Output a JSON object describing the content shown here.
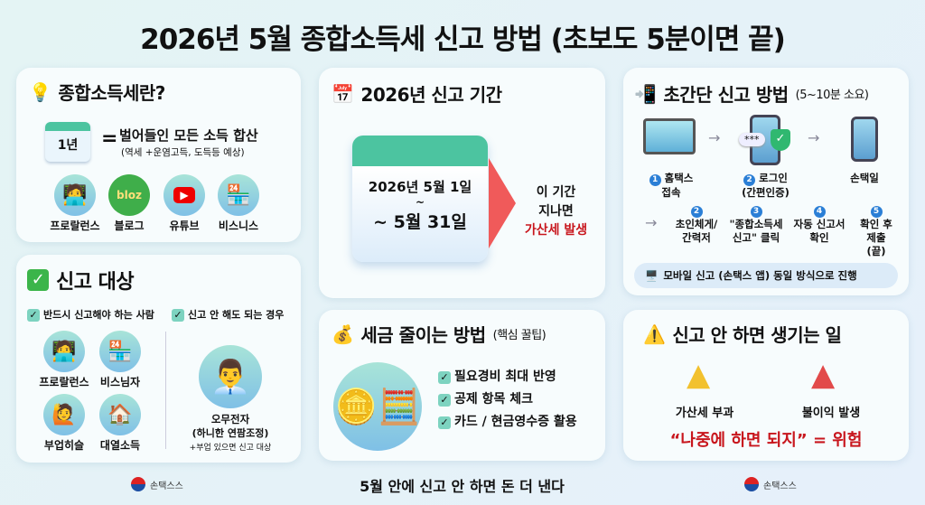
{
  "title": "2026년 5월 종합소득세 신고 방법 (초보도 5분이면 끝)",
  "what": {
    "heading": "종합소득세란?",
    "calendar": "1년",
    "equals": "=",
    "definition": "벌어들인 모든 소득 합산",
    "note": "(역세 +운염고득, 도득등 예상)",
    "icons": [
      {
        "label": "프로랄런스",
        "icon": "freelancer-icon"
      },
      {
        "label": "블로그",
        "icon": "blog-icon",
        "badge": "bloz"
      },
      {
        "label": "유튜브",
        "icon": "youtube-icon"
      },
      {
        "label": "비스니스",
        "icon": "store-icon"
      }
    ]
  },
  "target": {
    "heading": "신고 대상",
    "must_label": "반드시 신고해야 하는 사람",
    "not_label": "신고 안 해도 되는 경우",
    "must": [
      {
        "label": "프로랄런스",
        "icon": "freelancer-icon"
      },
      {
        "label": "비스님자",
        "icon": "store-icon"
      },
      {
        "label": "부업히슬",
        "icon": "side-job-icon"
      },
      {
        "label": "대열소득",
        "icon": "house-icon"
      }
    ],
    "employee": {
      "label": "오무전자",
      "sub": "(하니한 연팜조정)",
      "note": "+부업 있으면 신고 대상"
    }
  },
  "period": {
    "heading": "2026년 신고 기간",
    "start": "2026년 5월 1일",
    "tilde": "~",
    "end": "~ 5월 31일",
    "after1": "이 기간",
    "after2": "지나면",
    "penalty": "가산세 발생"
  },
  "save": {
    "heading": "세금 줄이는 방법",
    "sub": "(핵심 꿀팁)",
    "tips": [
      "필요경비 최대 반영",
      "공제 항목 체크",
      "카드 / 현금영수증 활용"
    ]
  },
  "howto": {
    "heading": "초간단 신고 방법",
    "sub": "(5~10분 소요)",
    "top": [
      {
        "n": "1",
        "l1": "홈택스",
        "l2": "접속"
      },
      {
        "n": "2",
        "l1": "로그인",
        "l2": "(간편인증)"
      },
      {
        "n": "",
        "l1": "손택일",
        "l2": ""
      }
    ],
    "password": "***",
    "steps": [
      {
        "n": "2",
        "l1": "초인체게/",
        "l2": "간력저"
      },
      {
        "n": "3",
        "l1": "\"종합소득세",
        "l2": "신고\" 클릭"
      },
      {
        "n": "4",
        "l1": "자동 신고서",
        "l2": "확인"
      },
      {
        "n": "5",
        "l1": "확인 후",
        "l2": "제출",
        "l3": "(끝)"
      }
    ],
    "mobile": "모바일 신고 (손택스 앱) 동일 방식으로 진행"
  },
  "risk": {
    "heading": "신고 안 하면 생기는 일",
    "items": [
      "가산세 부과",
      "불이익 발생"
    ],
    "warning": "“나중에 하면 되지” = 위험"
  },
  "footer": {
    "logo_text": "손택스스",
    "center": "5월 안에 신고 안 하면 돈 더 낸다"
  },
  "colors": {
    "red": "#c8161d",
    "blue": "#2b7fd6",
    "teal": "#7dd3c0"
  }
}
